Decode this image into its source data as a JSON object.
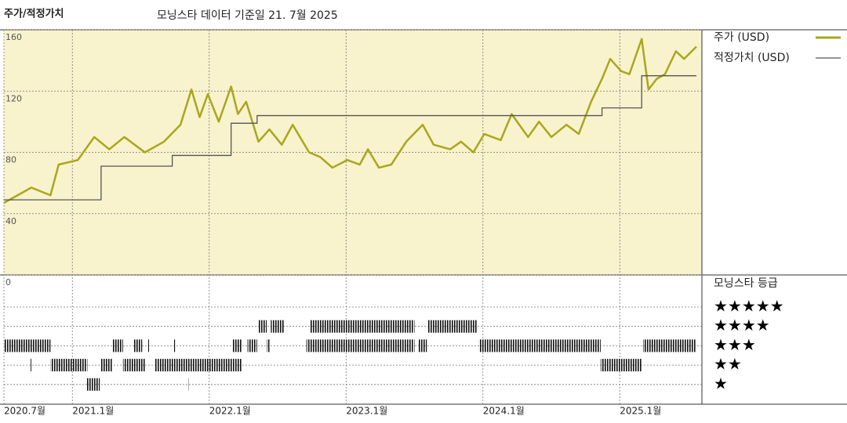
{
  "chart_data": {
    "type": "line",
    "title": "주가/적정가치",
    "subtitle": "모닝스타 데이터 기준일 21. 7월 2025",
    "xlim": [
      2020.5,
      2025.6
    ],
    "xticks": [
      {
        "value": 2020.5,
        "label": "2020.7월"
      },
      {
        "value": 2021,
        "label": "2021.1월"
      },
      {
        "value": 2022,
        "label": "2022.1월"
      },
      {
        "value": 2023,
        "label": "2023.1월"
      },
      {
        "value": 2024,
        "label": "2024.1월"
      },
      {
        "value": 2025,
        "label": "2025.1월"
      }
    ],
    "ylim": [
      0,
      160
    ],
    "yticks": [
      0,
      40,
      80,
      120,
      160
    ],
    "grid": true,
    "series": [
      {
        "name": "주가 (USD)",
        "color": "#a9a71c",
        "x": [
          2020.5,
          2020.7,
          2020.84,
          2020.9,
          2021.04,
          2021.16,
          2021.27,
          2021.38,
          2021.53,
          2021.67,
          2021.79,
          2021.87,
          2021.93,
          2021.99,
          2022.07,
          2022.16,
          2022.21,
          2022.27,
          2022.36,
          2022.44,
          2022.53,
          2022.61,
          2022.73,
          2022.81,
          2022.9,
          2023.01,
          2023.1,
          2023.16,
          2023.24,
          2023.33,
          2023.44,
          2023.56,
          2023.64,
          2023.76,
          2023.84,
          2023.93,
          2024.01,
          2024.13,
          2024.21,
          2024.33,
          2024.41,
          2024.5,
          2024.61,
          2024.7,
          2024.79,
          2024.87,
          2024.93,
          2025.01,
          2025.07,
          2025.16,
          2025.21,
          2025.27,
          2025.33,
          2025.41,
          2025.47,
          2025.56
        ],
        "values": [
          47,
          57,
          52,
          72,
          75,
          90,
          82,
          90,
          80,
          87,
          98,
          121,
          103,
          118,
          100,
          123,
          105,
          113,
          87,
          95,
          85,
          98,
          80,
          77,
          70,
          75,
          72,
          82,
          70,
          72,
          87,
          98,
          85,
          82,
          87,
          80,
          92,
          88,
          105,
          90,
          100,
          90,
          98,
          92,
          113,
          128,
          141,
          133,
          131,
          154,
          121,
          128,
          131,
          146,
          141,
          149
        ]
      },
      {
        "name": "적정가치 (USD)",
        "color": "#555555",
        "x": [
          2020.5,
          2021.21,
          2021.21,
          2021.73,
          2021.73,
          2022.16,
          2022.16,
          2022.35,
          2022.35,
          2024.87,
          2024.87,
          2025.16,
          2025.16,
          2025.56
        ],
        "values": [
          49,
          49,
          71,
          71,
          78,
          78,
          99,
          99,
          104,
          104,
          109,
          109,
          130,
          130
        ]
      }
    ],
    "rating_title": "모닝스타 등급",
    "rating_levels": [
      {
        "stars": 5,
        "label": "★★★★★"
      },
      {
        "stars": 4,
        "label": "★★★★"
      },
      {
        "stars": 3,
        "label": "★★★"
      },
      {
        "stars": 2,
        "label": "★★"
      },
      {
        "stars": 1,
        "label": "★"
      }
    ],
    "rating_periods": [
      {
        "stars": 3,
        "start": 2020.5,
        "end": 2020.84
      },
      {
        "stars": 3,
        "start": 2021.29,
        "end": 2021.37
      },
      {
        "stars": 3,
        "start": 2021.45,
        "end": 2021.51
      },
      {
        "stars": 3,
        "start": 2021.55,
        "end": 2021.56
      },
      {
        "stars": 3,
        "start": 2021.74,
        "end": 2021.75
      },
      {
        "stars": 3,
        "start": 2022.17,
        "end": 2022.24
      },
      {
        "stars": 3,
        "start": 2022.28,
        "end": 2022.35
      },
      {
        "stars": 3,
        "start": 2022.42,
        "end": 2022.44
      },
      {
        "stars": 3,
        "start": 2022.71,
        "end": 2023.5
      },
      {
        "stars": 3,
        "start": 2023.53,
        "end": 2023.59
      },
      {
        "stars": 3,
        "start": 2023.97,
        "end": 2024.86
      },
      {
        "stars": 3,
        "start": 2025.17,
        "end": 2025.56
      },
      {
        "stars": 2,
        "start": 2020.69,
        "end": 2020.7
      },
      {
        "stars": 2,
        "start": 2020.84,
        "end": 2021.11
      },
      {
        "stars": 2,
        "start": 2021.21,
        "end": 2021.29
      },
      {
        "stars": 2,
        "start": 2021.37,
        "end": 2021.53
      },
      {
        "stars": 2,
        "start": 2021.6,
        "end": 2022.24
      },
      {
        "stars": 2,
        "start": 2024.86,
        "end": 2025.16
      },
      {
        "stars": 1,
        "start": 2021.1,
        "end": 2021.2
      },
      {
        "stars": 1,
        "start": 2021.84,
        "end": 2021.845
      },
      {
        "stars": 4,
        "start": 2022.36,
        "end": 2022.42
      },
      {
        "stars": 4,
        "start": 2022.45,
        "end": 2022.55
      },
      {
        "stars": 4,
        "start": 2022.74,
        "end": 2023.5
      },
      {
        "stars": 4,
        "start": 2023.6,
        "end": 2023.96
      }
    ]
  }
}
